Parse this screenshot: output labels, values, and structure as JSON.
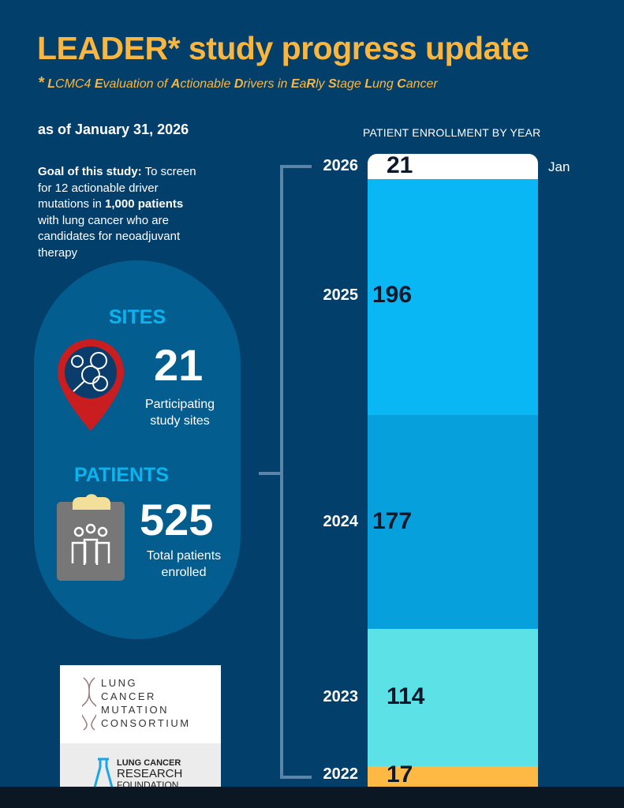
{
  "header": {
    "title": "LEADER* study progress update",
    "subtitle_star": "*",
    "subtitle_parts": [
      [
        "L",
        1
      ],
      [
        "CMC4 ",
        0
      ],
      [
        "E",
        1
      ],
      [
        "valuation of ",
        0
      ],
      [
        "A",
        1
      ],
      [
        "ctionable ",
        0
      ],
      [
        "D",
        1
      ],
      [
        "rivers in ",
        0
      ],
      [
        "E",
        1
      ],
      [
        "a",
        0
      ],
      [
        "R",
        1
      ],
      [
        "ly ",
        0
      ],
      [
        "S",
        1
      ],
      [
        "tage ",
        0
      ],
      [
        "L",
        1
      ],
      [
        "ung ",
        0
      ],
      [
        "C",
        1
      ],
      [
        "ancer",
        0
      ]
    ]
  },
  "as_of": "as of January 31, 2026",
  "goal": {
    "label": "Goal of this study:",
    "t1": " To screen for 12 actionable driver mutations in ",
    "b1": "1,000 patients",
    "t2": " with lung cancer who are candidates for neoadjuvant therapy"
  },
  "sites": {
    "title": "SITES",
    "value": "21",
    "caption": "Participating study sites",
    "icon": "map-pin-research-icon"
  },
  "patients": {
    "title": "PATIENTS",
    "value": "525",
    "caption": "Total patients enrolled",
    "icon": "clipboard-people-icon"
  },
  "logos": {
    "lcmc": [
      "LUNG",
      "CANCER",
      "MUTATION",
      "CONSORTIUM"
    ],
    "lcrf": [
      "LUNG CANCER",
      "RESEARCH",
      "FOUNDATION."
    ]
  },
  "chart_data": {
    "type": "bar",
    "stacked": true,
    "title": "PATIENT ENROLLMENT BY YEAR",
    "categories": [
      "2026",
      "2025",
      "2024",
      "2023",
      "2022"
    ],
    "values": [
      21,
      196,
      177,
      114,
      17
    ],
    "colors": [
      "#ffffff",
      "#0ab7f5",
      "#06a0dc",
      "#5ce1e6",
      "#fdb944"
    ],
    "annotation": "Jan"
  }
}
